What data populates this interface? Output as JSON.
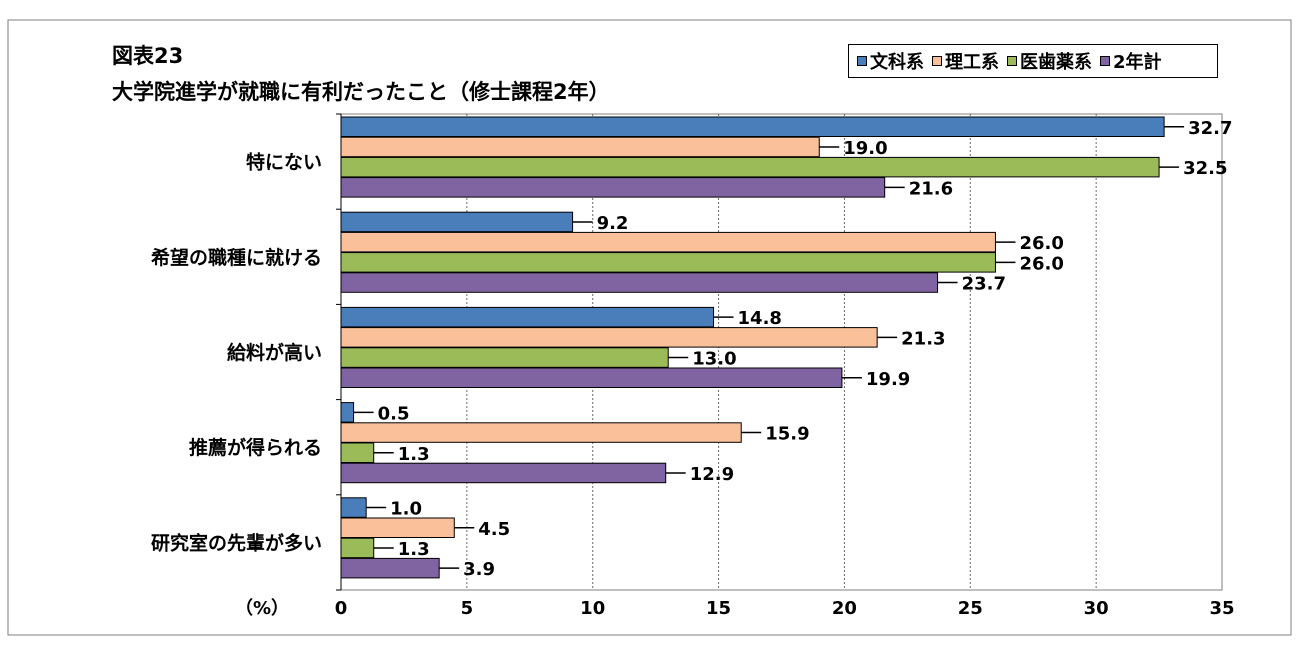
{
  "chart_data": {
    "type": "bar",
    "orientation": "horizontal",
    "title": "図表23",
    "subtitle": "大学院進学が就職に有利だったこと（修士課程2年）",
    "xlabel": "（%）",
    "ylabel": "",
    "xlim": [
      0,
      35
    ],
    "xticks": [
      "0",
      "5",
      "10",
      "15",
      "20",
      "25",
      "30",
      "35"
    ],
    "grid": "vertical-dotted",
    "legend_position": "top-right",
    "categories": [
      "特にない",
      "希望の職種に就ける",
      "給料が高い",
      "推薦が得られる",
      "研究室の先輩が多い"
    ],
    "series": [
      {
        "name": "文科系",
        "color": "#4a7ebb",
        "values": [
          32.7,
          9.2,
          14.8,
          0.5,
          1.0
        ],
        "labels": [
          "32.7",
          "9.2",
          "14.8",
          "0.5",
          "1.0"
        ]
      },
      {
        "name": "理工系",
        "color": "#f9c09a",
        "values": [
          19.0,
          26.0,
          21.3,
          15.9,
          4.5
        ],
        "labels": [
          "19.0",
          "26.0",
          "21.3",
          "15.9",
          "4.5"
        ]
      },
      {
        "name": "医歯薬系",
        "color": "#9bbb59",
        "values": [
          32.5,
          26.0,
          13.0,
          1.3,
          1.3
        ],
        "labels": [
          "32.5",
          "26.0",
          "13.0",
          "1.3",
          "1.3"
        ]
      },
      {
        "name": "2年計",
        "color": "#8064a2",
        "values": [
          21.6,
          23.7,
          19.9,
          12.9,
          3.9
        ],
        "labels": [
          "21.6",
          "23.7",
          "19.9",
          "12.9",
          "3.9"
        ]
      }
    ]
  }
}
